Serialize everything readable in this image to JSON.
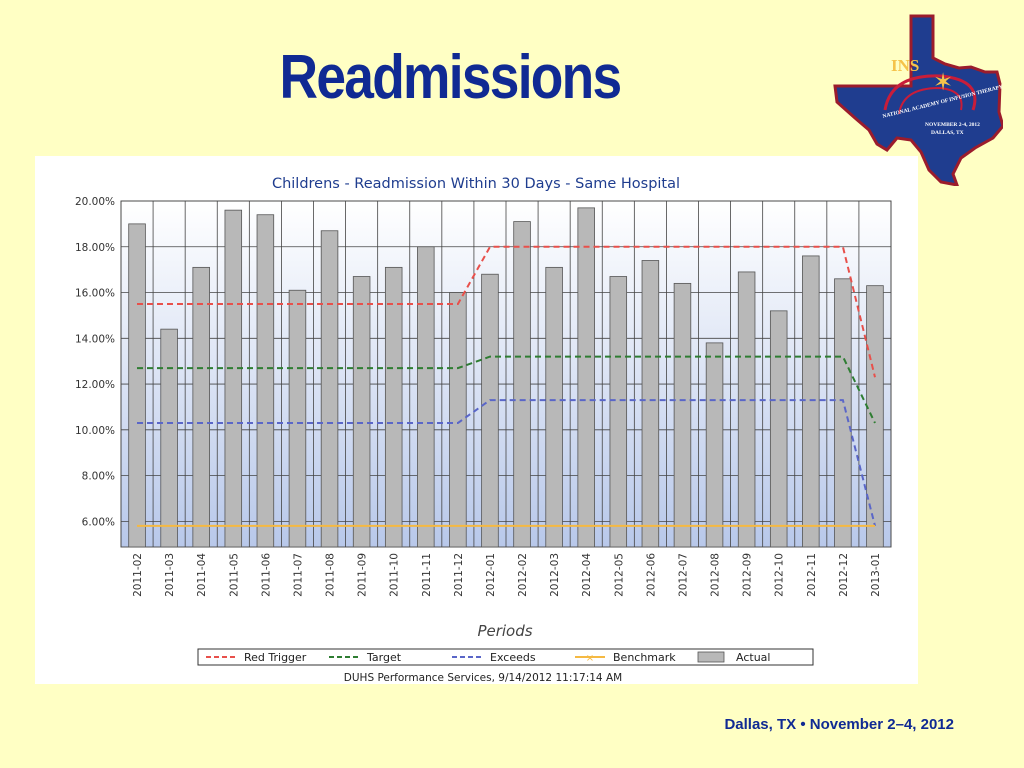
{
  "slide": {
    "title": "Readmissions",
    "footer": "Dallas, TX • November 2–4, 2012"
  },
  "logo": {
    "abbr": "INS",
    "arc_text": "NATIONAL ACADEMY OF INFUSION THERAPY",
    "event_date": "NOVEMBER 2-4, 2012",
    "event_city": "DALLAS, TX"
  },
  "colors": {
    "title": "#102a93",
    "background": "#ffffc4",
    "red_trigger": "#e8504b",
    "target": "#2e7d32",
    "exceeds": "#5a66c8",
    "benchmark": "#f5b942",
    "actual": "#b8b8b8"
  },
  "chart_data": {
    "type": "bar",
    "title": "Childrens - Readmission Within 30 Days - Same Hospital",
    "xlabel": "Periods",
    "ylabel": "",
    "ylim": [
      4.88,
      20.0
    ],
    "ytick_values": [
      6,
      8,
      10,
      12,
      14,
      16,
      18,
      20
    ],
    "ytick_labels": [
      "6.00%",
      "8.00%",
      "10.00%",
      "12.00%",
      "14.00%",
      "16.00%",
      "18.00%",
      "20.00%"
    ],
    "grid": true,
    "legend_position": "bottom",
    "categories": [
      "2011-02",
      "2011-03",
      "2011-04",
      "2011-05",
      "2011-06",
      "2011-07",
      "2011-08",
      "2011-09",
      "2011-10",
      "2011-11",
      "2011-12",
      "2012-01",
      "2012-02",
      "2012-03",
      "2012-04",
      "2012-05",
      "2012-06",
      "2012-07",
      "2012-08",
      "2012-09",
      "2012-10",
      "2012-11",
      "2012-12",
      "2013-01"
    ],
    "series": [
      {
        "name": "Actual",
        "kind": "bar",
        "values": [
          19.0,
          14.4,
          17.1,
          19.6,
          19.4,
          16.1,
          18.7,
          16.7,
          17.1,
          18.0,
          16.0,
          16.8,
          19.1,
          17.1,
          19.7,
          16.7,
          17.4,
          16.4,
          13.8,
          16.9,
          15.2,
          17.6,
          16.6,
          16.3
        ]
      },
      {
        "name": "Red Trigger",
        "kind": "line",
        "values": [
          15.5,
          15.5,
          15.5,
          15.5,
          15.5,
          15.5,
          15.5,
          15.5,
          15.5,
          15.5,
          15.5,
          18.0,
          18.0,
          18.0,
          18.0,
          18.0,
          18.0,
          18.0,
          18.0,
          18.0,
          18.0,
          18.0,
          18.0,
          12.3
        ]
      },
      {
        "name": "Target",
        "kind": "line",
        "values": [
          12.7,
          12.7,
          12.7,
          12.7,
          12.7,
          12.7,
          12.7,
          12.7,
          12.7,
          12.7,
          12.7,
          13.2,
          13.2,
          13.2,
          13.2,
          13.2,
          13.2,
          13.2,
          13.2,
          13.2,
          13.2,
          13.2,
          13.2,
          10.3
        ]
      },
      {
        "name": "Exceeds",
        "kind": "line",
        "values": [
          10.3,
          10.3,
          10.3,
          10.3,
          10.3,
          10.3,
          10.3,
          10.3,
          10.3,
          10.3,
          10.3,
          11.3,
          11.3,
          11.3,
          11.3,
          11.3,
          11.3,
          11.3,
          11.3,
          11.3,
          11.3,
          11.3,
          11.3,
          5.8
        ]
      },
      {
        "name": "Benchmark",
        "kind": "line",
        "values": [
          5.8,
          5.8,
          5.8,
          5.8,
          5.8,
          5.8,
          5.8,
          5.8,
          5.8,
          5.8,
          5.8,
          5.8,
          5.8,
          5.8,
          5.8,
          5.8,
          5.8,
          5.8,
          5.8,
          5.8,
          5.8,
          5.8,
          5.8,
          5.8
        ]
      }
    ],
    "legend": [
      "Red Trigger",
      "Target",
      "Exceeds",
      "Benchmark",
      "Actual"
    ],
    "source_note": "DUHS Performance Services, 9/14/2012 11:17:14 AM"
  }
}
